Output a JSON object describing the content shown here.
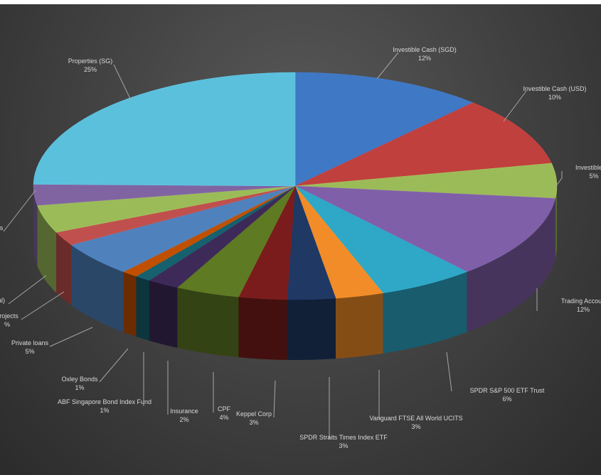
{
  "chart_data": {
    "type": "pie",
    "style": "3d",
    "title": "",
    "legend": "none",
    "slices": [
      {
        "label": "Investible Cash (SGD)",
        "value_label": "12%",
        "value": 12,
        "color": "#3f78c4"
      },
      {
        "label": "Investible Cash (USD)",
        "value_label": "10%",
        "value": 10,
        "color": "#c0403e"
      },
      {
        "label": "Investible Ca",
        "value_label": "5%",
        "value": 5,
        "color": "#9bbb59"
      },
      {
        "label": "Trading Accoun",
        "value_label": "12%",
        "value": 12,
        "color": "#7f5fa8"
      },
      {
        "label": "SPDR S&P 500 ETF Trust",
        "value_label": "6%",
        "value": 6,
        "color": "#2ea8c6"
      },
      {
        "label": "Vanguard FTSE All World UCITS",
        "value_label": "3%",
        "value": 3,
        "color": "#f28c28"
      },
      {
        "label": "SPDR Straits Times Index ETF",
        "value_label": "3%",
        "value": 3,
        "color": "#1f3864"
      },
      {
        "label": "Keppel Corp",
        "value_label": "3%",
        "value": 3,
        "color": "#7a1c1c"
      },
      {
        "label": "CPF",
        "value_label": "4%",
        "value": 4,
        "color": "#5e7a23"
      },
      {
        "label": "Insurance",
        "value_label": "2%",
        "value": 2,
        "color": "#3d2a59"
      },
      {
        "label": "ABF Singapore Bond Index Fund",
        "value_label": "1%",
        "value": 1,
        "color": "#17606e"
      },
      {
        "label": "Oxley Bonds",
        "value_label": "1%",
        "value": 1,
        "color": "#c05000"
      },
      {
        "label": "Private loans",
        "value_label": "5%",
        "value": 5,
        "color": "#4f81bd"
      },
      {
        "label": "projects",
        "value_label": "%",
        "value": 2,
        "color": "#c0504d"
      },
      {
        "label": "al)",
        "value_label": "",
        "value": 4,
        "color": "#9bbb59"
      },
      {
        "label": "s",
        "value_label": "",
        "value": 3,
        "color": "#8064a2"
      },
      {
        "label": "Properties (SG)",
        "value_label": "25%",
        "value": 25,
        "color": "#5bc0dc"
      }
    ]
  }
}
